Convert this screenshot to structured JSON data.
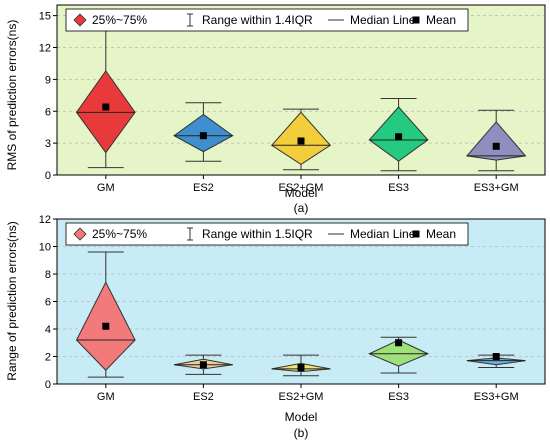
{
  "chart_data": [
    {
      "type": "box",
      "panel_label": "(a)",
      "xlabel": "Model",
      "ylabel": "RMS of prediction errors(ns)",
      "ylim": [
        0,
        16
      ],
      "yticks": [
        0,
        3,
        6,
        9,
        12,
        15
      ],
      "background": "#e6f5c8",
      "categories": [
        "GM",
        "ES2",
        "ES2+GM",
        "ES3",
        "ES3+GM"
      ],
      "colors": [
        "#e83a3a",
        "#3f8fcf",
        "#f2cd3c",
        "#25c97f",
        "#8f8fbf"
      ],
      "legend": {
        "items": [
          "25%~75%",
          "Range within 1.4IQR",
          "Median Line",
          "Mean"
        ],
        "placement": "top"
      },
      "series": [
        {
          "category": "GM",
          "min": 0.7,
          "q1": 2.1,
          "median": 5.9,
          "q3": 9.8,
          "max": 14.1,
          "mean": 6.4
        },
        {
          "category": "ES2",
          "min": 1.3,
          "q1": 2.2,
          "median": 3.7,
          "q3": 5.7,
          "max": 6.8,
          "mean": 3.7
        },
        {
          "category": "ES2+GM",
          "min": 0.5,
          "q1": 1.0,
          "median": 2.8,
          "q3": 5.9,
          "max": 6.2,
          "mean": 3.2
        },
        {
          "category": "ES3",
          "min": 0.4,
          "q1": 1.3,
          "median": 3.3,
          "q3": 6.4,
          "max": 7.2,
          "mean": 3.6
        },
        {
          "category": "ES3+GM",
          "min": 0.4,
          "q1": 1.4,
          "median": 1.8,
          "q3": 5.0,
          "max": 6.1,
          "mean": 2.7
        }
      ]
    },
    {
      "type": "box",
      "panel_label": "(b)",
      "xlabel": "Model",
      "ylabel": "Range of prediction errors(ns)",
      "ylim": [
        0,
        12
      ],
      "yticks": [
        0,
        2,
        4,
        6,
        8,
        10,
        12
      ],
      "background": "#c8ecf5",
      "categories": [
        "GM",
        "ES2",
        "ES2+GM",
        "ES3",
        "ES3+GM"
      ],
      "colors": [
        "#f27a7a",
        "#f0cf9a",
        "#f2e27a",
        "#9ee07a",
        "#6aaee0"
      ],
      "legend": {
        "items": [
          "25%~75%",
          "Range within 1.5IQR",
          "Median Line",
          "Mean"
        ],
        "placement": "top"
      },
      "series": [
        {
          "category": "GM",
          "min": 0.5,
          "q1": 1.0,
          "median": 3.2,
          "q3": 7.4,
          "max": 9.6,
          "mean": 4.2
        },
        {
          "category": "ES2",
          "min": 0.7,
          "q1": 1.1,
          "median": 1.4,
          "q3": 1.8,
          "max": 2.1,
          "mean": 1.4
        },
        {
          "category": "ES2+GM",
          "min": 0.6,
          "q1": 0.9,
          "median": 1.1,
          "q3": 1.5,
          "max": 2.1,
          "mean": 1.2
        },
        {
          "category": "ES3",
          "min": 0.8,
          "q1": 1.3,
          "median": 2.2,
          "q3": 3.2,
          "max": 3.4,
          "mean": 3.0
        },
        {
          "category": "ES3+GM",
          "min": 1.2,
          "q1": 1.4,
          "median": 1.7,
          "q3": 1.9,
          "max": 2.1,
          "mean": 2.0
        }
      ]
    }
  ]
}
